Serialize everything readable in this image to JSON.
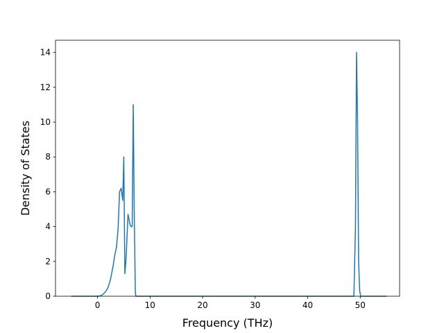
{
  "chart_data": {
    "type": "line",
    "title": "",
    "xlabel": "Frequency (THz)",
    "ylabel": "Density of States",
    "xlim": [
      -8,
      57.5
    ],
    "ylim": [
      0,
      14.7
    ],
    "xticks": [
      0,
      10,
      20,
      30,
      40,
      50
    ],
    "yticks": [
      0,
      2,
      4,
      6,
      8,
      10,
      12,
      14
    ],
    "grid": false,
    "legend": "none",
    "colors": {
      "line": "#1f77b4",
      "axes": "#000000",
      "background": "#ffffff"
    },
    "series": [
      {
        "x": [
          -5,
          -2,
          -1,
          0,
          0.5,
          1,
          1.5,
          2,
          2.5,
          3,
          3.3,
          3.6,
          3.9,
          4.2,
          4.5,
          4.8,
          5.0,
          5.2,
          5.4,
          5.6,
          5.8,
          6.0,
          6.2,
          6.4,
          6.6,
          6.8,
          7.0,
          7.2,
          7.3,
          7.5,
          10,
          20,
          30,
          40,
          48,
          48.8,
          49.1,
          49.3,
          49.5,
          49.7,
          49.9,
          50.1,
          50.5,
          55
        ],
        "y": [
          0,
          0,
          0,
          0,
          0.02,
          0.1,
          0.25,
          0.5,
          1.0,
          1.8,
          2.4,
          2.8,
          3.8,
          6.0,
          6.2,
          5.5,
          8.0,
          1.3,
          2.0,
          3.3,
          4.7,
          4.4,
          4.1,
          4.0,
          4.0,
          11.0,
          4.5,
          0.2,
          0,
          0,
          0,
          0,
          0,
          0,
          0,
          0,
          4.0,
          14.0,
          10.0,
          2.0,
          0.3,
          0,
          0,
          0
        ]
      }
    ]
  }
}
